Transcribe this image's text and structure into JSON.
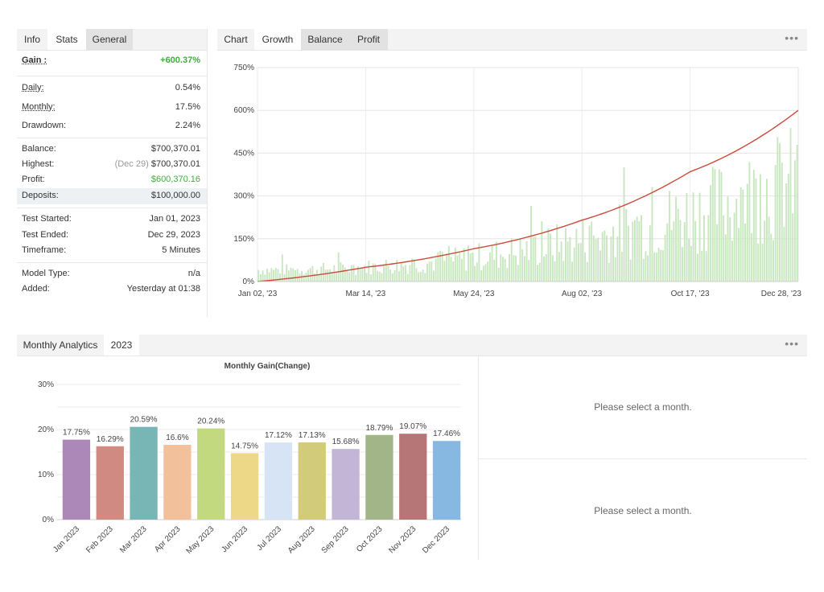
{
  "stats_panel": {
    "tabs": [
      "Info",
      "Stats",
      "General"
    ],
    "gain": {
      "label": "Gain :",
      "value": "+600.37%"
    },
    "daily": {
      "label": "Daily:",
      "value": "0.54%"
    },
    "monthly": {
      "label": "Monthly:",
      "value": "17.5%"
    },
    "drawdown": {
      "label": "Drawdown:",
      "value": "2.24%"
    },
    "balance": {
      "label": "Balance:",
      "value": "$700,370.01"
    },
    "highest": {
      "label": "Highest:",
      "note": "(Dec 29)",
      "value": "$700,370.01"
    },
    "profit": {
      "label": "Profit:",
      "value": "$600,370.16"
    },
    "deposits": {
      "label": "Deposits:",
      "value": "$100,000.00"
    },
    "test_started": {
      "label": "Test Started:",
      "value": "Jan 01, 2023"
    },
    "test_ended": {
      "label": "Test Ended:",
      "value": "Dec 29, 2023"
    },
    "timeframe": {
      "label": "Timeframe:",
      "value": "5 Minutes"
    },
    "model_type": {
      "label": "Model Type:",
      "value": "n/a"
    },
    "added": {
      "label": "Added:",
      "value": "Yesterday at 01:38"
    }
  },
  "chart_panel": {
    "tabs": [
      "Chart",
      "Growth",
      "Balance",
      "Profit"
    ],
    "menu": "•••"
  },
  "monthly_panel": {
    "tabs": [
      "Monthly Analytics",
      "2023"
    ],
    "menu": "•••",
    "placeholder_top": "Please select a month.",
    "placeholder_bottom": "Please select a month."
  },
  "colors": {
    "growth_line": "#cc4a3a",
    "daily_bars": "#c8e6c0",
    "gain_green": "#3eae3b"
  },
  "chart_data": [
    {
      "type": "line",
      "title": "",
      "ylim": [
        0,
        750
      ],
      "y_ticks": [
        "0%",
        "150%",
        "300%",
        "450%",
        "600%",
        "750%"
      ],
      "x_ticks": [
        "Jan 02, '23",
        "Mar 14, '23",
        "May 24, '23",
        "Aug 02, '23",
        "Oct 17, '23",
        "Dec 28, '23"
      ],
      "series": [
        {
          "kind": "line",
          "x": [
            "Jan 02, '23",
            "Mar 14, '23",
            "May 24, '23",
            "Aug 02, '23",
            "Oct 17, '23",
            "Dec 28, '23"
          ],
          "values": [
            0,
            50,
            115,
            215,
            385,
            600
          ]
        },
        {
          "kind": "bar",
          "note_values_range": [
            5,
            690
          ]
        }
      ],
      "grid": true
    },
    {
      "type": "bar",
      "title": "Monthly Gain(Change)",
      "categories": [
        "Jan 2023",
        "Feb 2023",
        "Mar 2023",
        "Apr 2023",
        "May 2023",
        "Jun 2023",
        "Jul 2023",
        "Aug 2023",
        "Sep 2023",
        "Oct 2023",
        "Nov 2023",
        "Dec 2023"
      ],
      "values": [
        17.75,
        16.29,
        20.59,
        16.6,
        20.24,
        14.75,
        17.12,
        17.13,
        15.68,
        18.79,
        19.07,
        17.46
      ],
      "value_labels": [
        "17.75%",
        "16.29%",
        "20.59%",
        "16.6%",
        "20.24%",
        "14.75%",
        "17.12%",
        "17.13%",
        "15.68%",
        "18.79%",
        "19.07%",
        "17.46%"
      ],
      "colors": [
        "#ac88b8",
        "#d08a82",
        "#77b6b4",
        "#f2c09a",
        "#c3d97f",
        "#ecd886",
        "#d6e4f5",
        "#d2cc7a",
        "#c2b5d6",
        "#a2b588",
        "#b67677",
        "#86b8e2"
      ],
      "ylim": [
        0,
        30
      ],
      "y_ticks": [
        "0%",
        "10%",
        "20%",
        "30%"
      ],
      "grid": true
    }
  ]
}
